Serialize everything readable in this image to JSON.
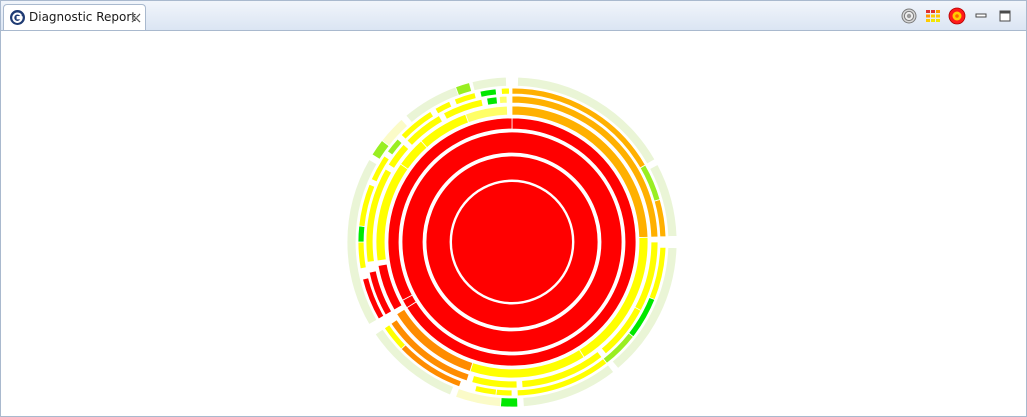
{
  "view": {
    "tab": {
      "title": "Diagnostic Report",
      "icon": "eclipse-g-icon"
    },
    "toolbar": [
      {
        "name": "target-icon",
        "title": ""
      },
      {
        "name": "legend-grid-icon",
        "title": ""
      },
      {
        "name": "badge-icon",
        "title": ""
      },
      {
        "name": "minimize-icon",
        "title": ""
      },
      {
        "name": "maximize-icon",
        "title": ""
      }
    ]
  },
  "chart_data": {
    "type": "sunburst",
    "colors": {
      "red": "#ff0000",
      "orange": "#ffb000",
      "dark_orange": "#ff8c00",
      "yellow": "#ffff00",
      "light_yellow": "#ffff66",
      "green": "#00e800",
      "lime": "#99ee22",
      "pale": "#eaf5d6",
      "pale_yellow": "#fbfbc8",
      "separator": "#ffffff"
    },
    "rings": [
      {
        "level": 0,
        "segments": [
          {
            "start": 0,
            "end": 360,
            "color": "red"
          }
        ]
      },
      {
        "level": 1,
        "segments": [
          {
            "start": 0,
            "end": 360,
            "color": "red"
          }
        ]
      },
      {
        "level": 2,
        "segments": [
          {
            "start": 0,
            "end": 360,
            "color": "red"
          }
        ]
      },
      {
        "level": 3,
        "segments": [
          {
            "start": 0,
            "end": 238,
            "color": "red"
          },
          {
            "start": 238,
            "end": 242,
            "color": "red"
          },
          {
            "start": 242,
            "end": 360,
            "color": "red"
          }
        ]
      },
      {
        "level": 4,
        "segments": [
          {
            "start": 0,
            "end": 88,
            "color": "orange"
          },
          {
            "start": 88,
            "end": 148,
            "color": "yellow"
          },
          {
            "start": 148,
            "end": 198,
            "color": "yellow"
          },
          {
            "start": 198,
            "end": 238,
            "color": "dark_orange"
          },
          {
            "start": 240,
            "end": 260,
            "color": "red"
          },
          {
            "start": 262,
            "end": 305,
            "color": "yellow"
          },
          {
            "start": 305,
            "end": 318,
            "color": "yellow"
          },
          {
            "start": 318,
            "end": 340,
            "color": "yellow"
          },
          {
            "start": 340,
            "end": 358,
            "color": "light_yellow"
          }
        ]
      },
      {
        "level": 5,
        "segments": [
          {
            "start": 0,
            "end": 88,
            "color": "orange"
          },
          {
            "start": 90,
            "end": 118,
            "color": "yellow"
          },
          {
            "start": 118,
            "end": 140,
            "color": "yellow"
          },
          {
            "start": 142,
            "end": 176,
            "color": "yellow"
          },
          {
            "start": 178,
            "end": 196,
            "color": "yellow"
          },
          {
            "start": 198,
            "end": 236,
            "color": "dark_orange"
          },
          {
            "start": 240,
            "end": 258,
            "color": "red"
          },
          {
            "start": 262,
            "end": 300,
            "color": "yellow"
          },
          {
            "start": 302,
            "end": 312,
            "color": "yellow"
          },
          {
            "start": 314,
            "end": 330,
            "color": "yellow"
          },
          {
            "start": 332,
            "end": 348,
            "color": "yellow"
          },
          {
            "start": 350,
            "end": 354,
            "color": "green"
          },
          {
            "start": 355,
            "end": 358,
            "color": "light_yellow"
          }
        ]
      },
      {
        "level": 6,
        "segments": [
          {
            "start": 0,
            "end": 60,
            "color": "orange"
          },
          {
            "start": 60,
            "end": 74,
            "color": "lime"
          },
          {
            "start": 74,
            "end": 88,
            "color": "orange"
          },
          {
            "start": 92,
            "end": 112,
            "color": "yellow"
          },
          {
            "start": 112,
            "end": 128,
            "color": "green"
          },
          {
            "start": 128,
            "end": 142,
            "color": "lime"
          },
          {
            "start": 142,
            "end": 178,
            "color": "yellow"
          },
          {
            "start": 180,
            "end": 186,
            "color": "yellow"
          },
          {
            "start": 186,
            "end": 194,
            "color": "yellow"
          },
          {
            "start": 200,
            "end": 226,
            "color": "dark_orange"
          },
          {
            "start": 226,
            "end": 236,
            "color": "yellow"
          },
          {
            "start": 240,
            "end": 256,
            "color": "red"
          },
          {
            "start": 260,
            "end": 270,
            "color": "yellow"
          },
          {
            "start": 270,
            "end": 276,
            "color": "green"
          },
          {
            "start": 276,
            "end": 292,
            "color": "yellow"
          },
          {
            "start": 294,
            "end": 304,
            "color": "yellow"
          },
          {
            "start": 306,
            "end": 312,
            "color": "lime"
          },
          {
            "start": 314,
            "end": 328,
            "color": "yellow"
          },
          {
            "start": 330,
            "end": 336,
            "color": "yellow"
          },
          {
            "start": 338,
            "end": 346,
            "color": "yellow"
          },
          {
            "start": 348,
            "end": 354,
            "color": "green"
          },
          {
            "start": 356,
            "end": 359,
            "color": "yellow"
          }
        ]
      },
      {
        "level": 7,
        "segments": [
          {
            "start": 2,
            "end": 60,
            "color": "pale"
          },
          {
            "start": 62,
            "end": 88,
            "color": "pale"
          },
          {
            "start": 92,
            "end": 140,
            "color": "pale"
          },
          {
            "start": 142,
            "end": 176,
            "color": "pale"
          },
          {
            "start": 178,
            "end": 184,
            "color": "green"
          },
          {
            "start": 184,
            "end": 200,
            "color": "pale_yellow"
          },
          {
            "start": 202,
            "end": 236,
            "color": "pale"
          },
          {
            "start": 240,
            "end": 300,
            "color": "pale"
          },
          {
            "start": 302,
            "end": 308,
            "color": "lime"
          },
          {
            "start": 308,
            "end": 318,
            "color": "pale_yellow"
          },
          {
            "start": 320,
            "end": 340,
            "color": "pale"
          },
          {
            "start": 340,
            "end": 345,
            "color": "lime"
          },
          {
            "start": 346,
            "end": 358,
            "color": "pale"
          }
        ]
      }
    ]
  }
}
